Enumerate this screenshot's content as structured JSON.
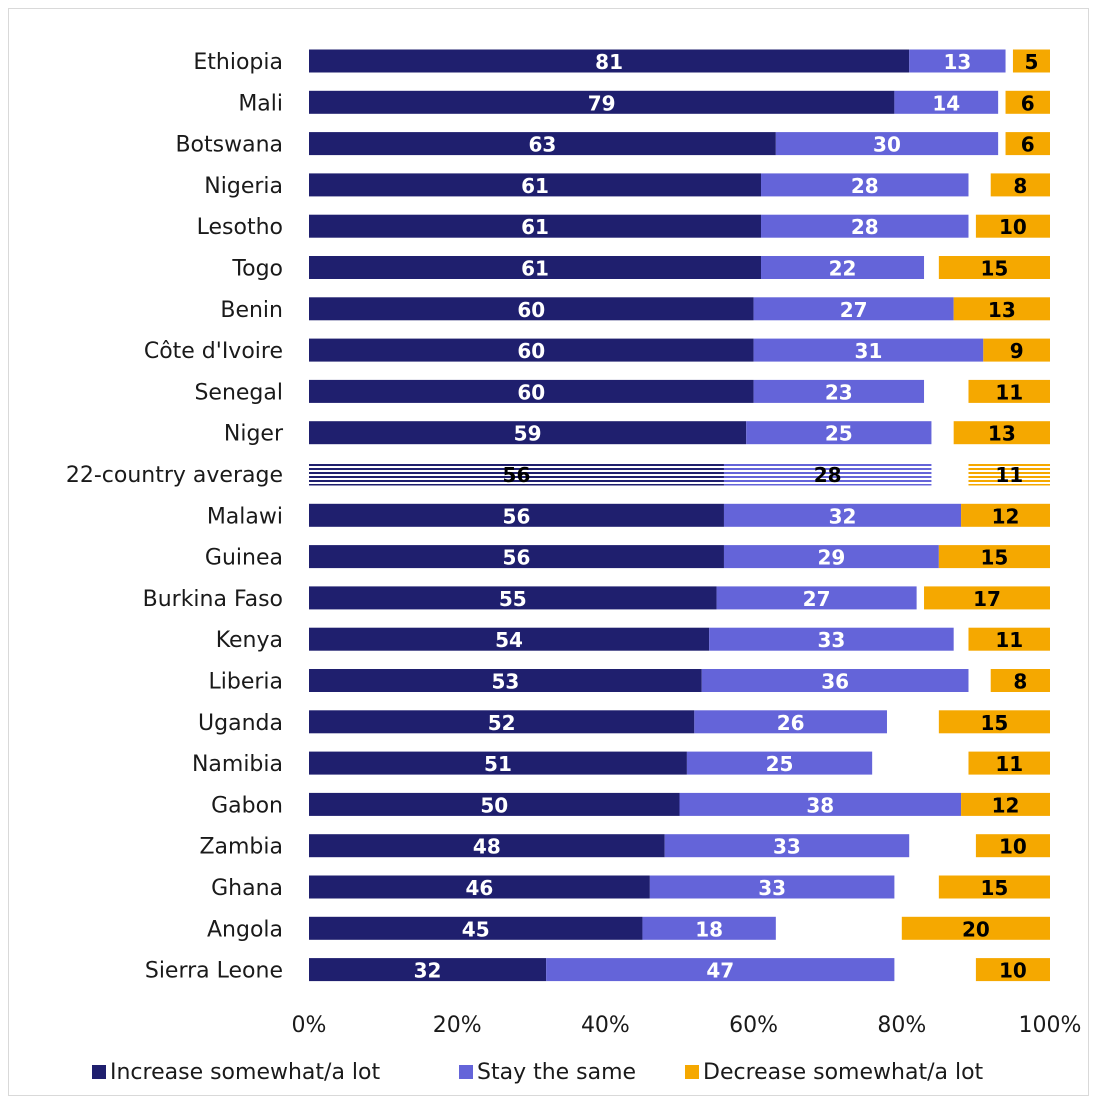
{
  "chart_data": {
    "type": "bar",
    "orientation": "horizontal",
    "stacked": true,
    "categories": [
      "Ethiopia",
      "Mali",
      "Botswana",
      "Nigeria",
      "Lesotho",
      "Togo",
      "Benin",
      "Côte d'Ivoire",
      "Senegal",
      "Niger",
      "22-country average",
      "Malawi",
      "Guinea",
      "Burkina Faso",
      "Kenya",
      "Liberia",
      "Uganda",
      "Namibia",
      "Gabon",
      "Zambia",
      "Ghana",
      "Angola",
      "Sierra Leone"
    ],
    "highlight_category": "22-country average",
    "series": [
      {
        "name": "Increase somewhat/a lot",
        "color": "#1f1f6e",
        "position": "left",
        "values": [
          81,
          79,
          63,
          61,
          61,
          61,
          60,
          60,
          60,
          59,
          56,
          56,
          56,
          55,
          54,
          53,
          52,
          51,
          50,
          48,
          46,
          45,
          32
        ]
      },
      {
        "name": "Stay the same",
        "color": "#6464d9",
        "position": "left",
        "values": [
          13,
          14,
          30,
          28,
          28,
          22,
          27,
          31,
          23,
          25,
          28,
          32,
          29,
          27,
          33,
          36,
          26,
          25,
          38,
          33,
          33,
          18,
          47
        ]
      },
      {
        "name": "Decrease somewhat/a lot",
        "color": "#f5a800",
        "position": "right",
        "values": [
          5,
          6,
          6,
          8,
          10,
          15,
          13,
          9,
          11,
          13,
          11,
          12,
          15,
          17,
          11,
          8,
          15,
          11,
          12,
          10,
          15,
          20,
          10
        ]
      }
    ],
    "xaxis": {
      "ticks": [
        "0%",
        "20%",
        "40%",
        "60%",
        "80%",
        "100%"
      ],
      "range": [
        0,
        100
      ]
    },
    "legend_position": "bottom",
    "grid": false
  }
}
